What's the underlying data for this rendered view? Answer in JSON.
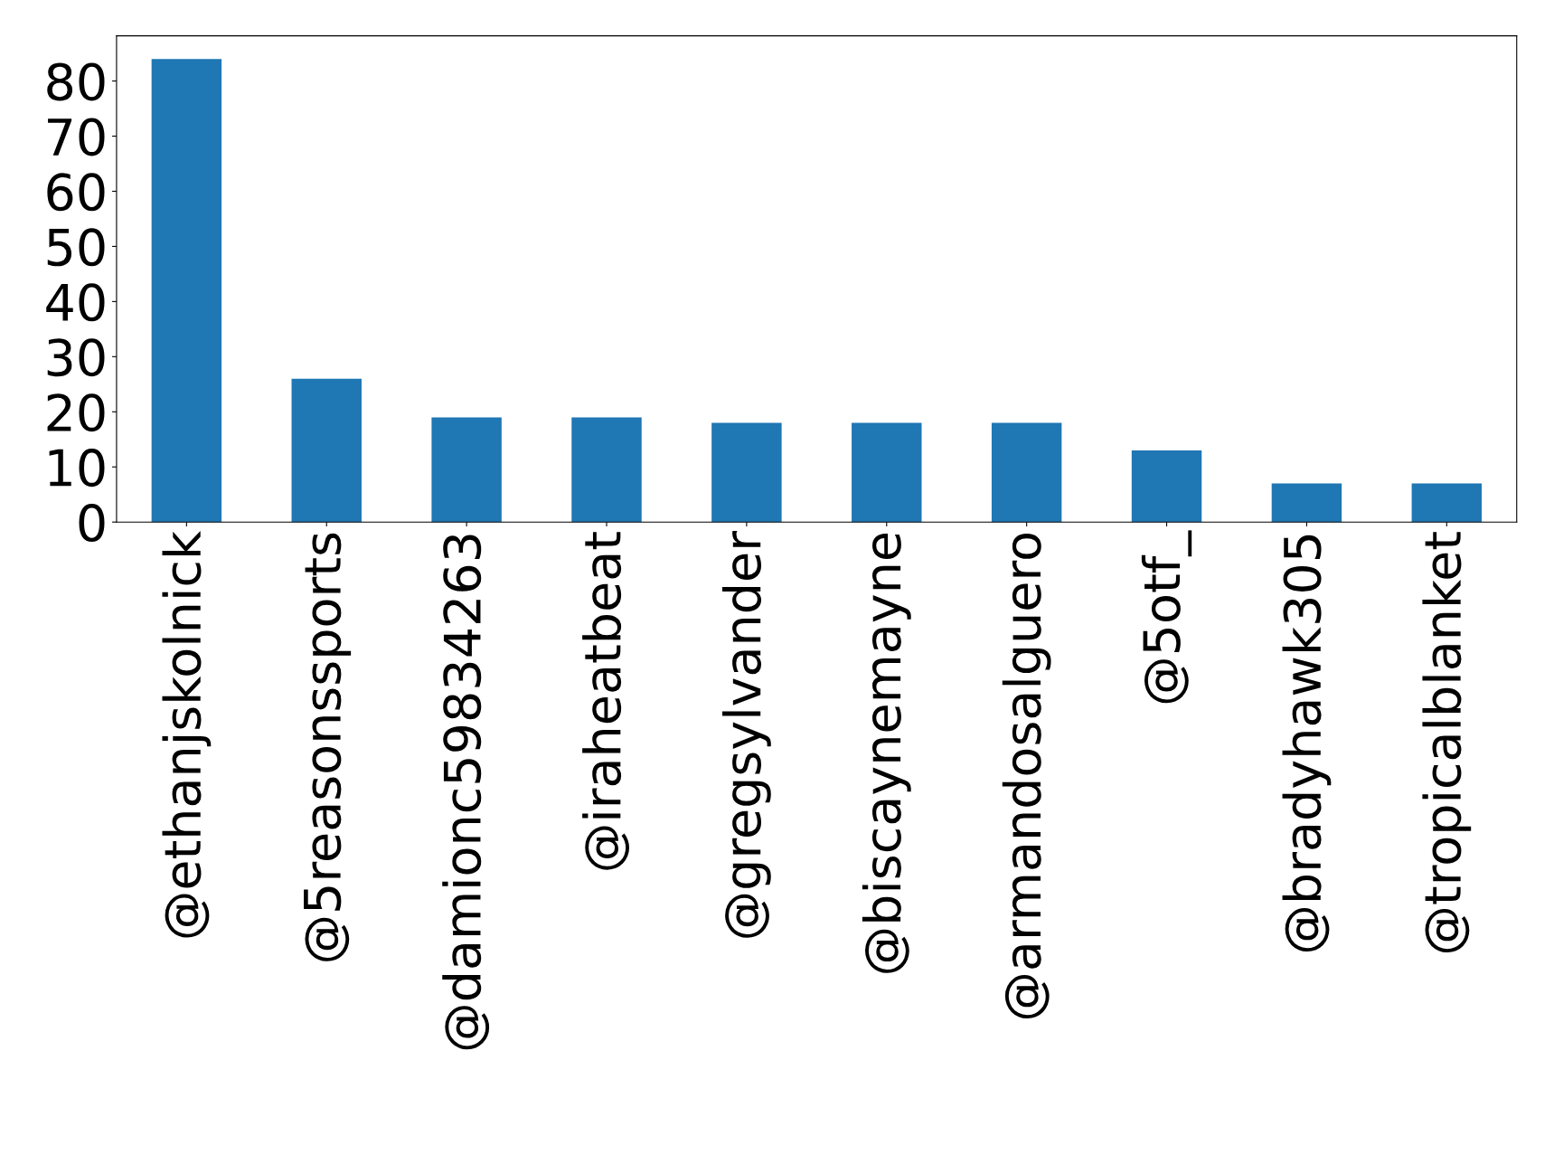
{
  "chart_data": {
    "type": "bar",
    "categories": [
      "@ethanjskolnick",
      "@5reasonssports",
      "@damionc59834263",
      "@iraheatbeat",
      "@gregsylvander",
      "@biscaynemayne",
      "@armandosalguero",
      "@5otf_",
      "@bradyhawk305",
      "@tropicalblanket"
    ],
    "values": [
      84,
      26,
      19,
      19,
      18,
      18,
      18,
      13,
      7,
      7
    ],
    "color": "#1f77b4",
    "ylim": [
      0,
      88.2
    ],
    "yticks": [
      0,
      10,
      20,
      30,
      40,
      50,
      60,
      70,
      80
    ],
    "grid": false,
    "legend": false
  }
}
